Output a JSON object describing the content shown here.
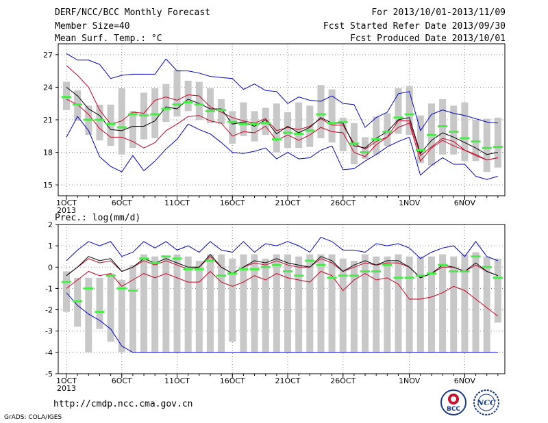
{
  "header": {
    "title": "DERF/NCC/BCC Monthly Forecast",
    "member_size": "Member Size=40",
    "variable1": "Mean Surf. Temp.: °C",
    "period": "For 2013/10/01-2013/11/09",
    "started": "Fcst Started Refer Date 2013/09/30",
    "produced": "Fcst Produced Date 2013/10/01"
  },
  "footer": {
    "url": "http://cmdp.ncc.cma.gov.cn",
    "credit": "GrADS: COLA/IGES",
    "logo_bcc": "BCC",
    "logo_ncc": "NCC"
  },
  "colors": {
    "max": "#0000cc",
    "min": "#cc0022",
    "mean": "#000000",
    "box": "#c8c8c8",
    "median": "#44ee44",
    "grid": "#888888"
  },
  "chart_data": [
    {
      "type": "line",
      "panel": "temperature",
      "ylim": [
        14,
        28
      ],
      "yticks": [
        15,
        18,
        21,
        24,
        27
      ],
      "x": [
        1,
        2,
        3,
        4,
        5,
        6,
        7,
        8,
        9,
        10,
        11,
        12,
        13,
        14,
        15,
        16,
        17,
        18,
        19,
        20,
        21,
        22,
        23,
        24,
        25,
        26,
        27,
        28,
        29,
        30,
        31,
        32,
        33,
        34,
        35,
        36,
        37,
        38,
        39,
        40
      ],
      "xticks": [
        {
          "day": 1,
          "label": "1OCT",
          "sub": "2013"
        },
        {
          "day": 6,
          "label": "6OCT"
        },
        {
          "day": 11,
          "label": "11OCT"
        },
        {
          "day": 16,
          "label": "16OCT"
        },
        {
          "day": 21,
          "label": "21OCT"
        },
        {
          "day": 26,
          "label": "26OCT"
        },
        {
          "day": 32,
          "label": "1NOV"
        },
        {
          "day": 37,
          "label": "6NOV"
        }
      ],
      "series": {
        "max": [
          27.1,
          26.5,
          26.5,
          26.1,
          24.8,
          25.1,
          25.2,
          25.2,
          25.2,
          26.6,
          25.5,
          25.5,
          25.3,
          25.0,
          24.9,
          24.8,
          23.8,
          24.3,
          23.7,
          23.6,
          22.5,
          23.1,
          22.8,
          22.7,
          23.2,
          22.5,
          22.4,
          20.3,
          21.2,
          21.7,
          23.4,
          23.6,
          20.0,
          21.5,
          21.9,
          21.6,
          21.4,
          21.1,
          20.8,
          20.7
        ],
        "mean": [
          24.0,
          23.2,
          22.0,
          21.4,
          20.1,
          20.0,
          20.4,
          20.4,
          20.9,
          22.2,
          22.0,
          22.9,
          22.5,
          22.0,
          22.0,
          20.6,
          20.8,
          20.4,
          21.0,
          19.7,
          20.4,
          19.8,
          20.3,
          21.2,
          20.7,
          20.7,
          18.6,
          18.4,
          19.3,
          19.9,
          21.0,
          21.2,
          17.9,
          19.1,
          19.8,
          19.4,
          18.9,
          18.4,
          17.8,
          18.0
        ],
        "min": [
          19.4,
          21.3,
          20.0,
          17.6,
          16.7,
          16.2,
          17.7,
          16.3,
          17.2,
          18.3,
          19.2,
          20.6,
          20.1,
          19.7,
          18.9,
          18.0,
          17.9,
          18.1,
          18.4,
          17.4,
          18.0,
          17.4,
          17.5,
          18.2,
          18.6,
          16.4,
          16.5,
          17.2,
          17.8,
          18.5,
          19.0,
          19.4,
          15.9,
          16.8,
          17.5,
          16.9,
          16.9,
          15.8,
          15.5,
          15.8
        ],
        "upper": [
          26.0,
          25.1,
          24.0,
          21.9,
          20.6,
          20.9,
          21.7,
          21.6,
          22.8,
          23.1,
          22.8,
          23.3,
          23.2,
          22.2,
          21.7,
          21.2,
          20.9,
          20.7,
          21.1,
          20.0,
          20.3,
          20.1,
          20.4,
          21.1,
          20.5,
          20.5,
          18.8,
          18.3,
          19.0,
          19.4,
          20.9,
          20.9,
          17.7,
          18.5,
          19.3,
          19.0,
          18.2,
          17.8,
          17.3,
          17.5
        ],
        "lower": [
          22.9,
          22.4,
          21.5,
          20.2,
          19.4,
          19.4,
          19.0,
          18.4,
          18.9,
          20.0,
          20.6,
          21.3,
          21.4,
          20.9,
          20.7,
          19.5,
          19.9,
          19.8,
          20.4,
          19.1,
          19.6,
          19.1,
          19.6,
          20.3,
          19.9,
          19.8,
          18.0,
          17.6,
          18.7,
          19.4,
          20.3,
          20.7,
          17.2,
          18.4,
          19.1,
          18.6,
          18.2,
          17.7,
          17.3,
          17.5
        ],
        "box_hi": [
          24.5,
          23.7,
          22.3,
          22.4,
          22.4,
          23.9,
          21.8,
          23.5,
          23.9,
          24.3,
          25.6,
          24.6,
          24.5,
          23.9,
          22.9,
          21.8,
          22.6,
          21.8,
          22.1,
          22.5,
          21.7,
          22.6,
          22.3,
          24.2,
          23.8,
          21.2,
          20.7,
          19.4,
          21.3,
          21.6,
          23.9,
          24.1,
          21.4,
          22.5,
          22.9,
          22.3,
          22.6,
          21.0,
          21.1,
          21.2
        ],
        "box_lo": [
          21.9,
          20.9,
          19.6,
          19.1,
          18.6,
          17.8,
          18.4,
          19.2,
          19.3,
          20.8,
          21.3,
          21.8,
          21.0,
          20.7,
          20.6,
          18.8,
          19.5,
          19.0,
          19.6,
          18.0,
          18.4,
          18.4,
          18.5,
          19.3,
          18.9,
          18.1,
          16.9,
          17.4,
          17.8,
          18.6,
          19.7,
          19.6,
          17.0,
          16.8,
          17.8,
          17.8,
          17.2,
          17.2,
          16.2,
          16.6
        ],
        "median": [
          23.1,
          22.4,
          21.0,
          21.0,
          20.6,
          20.3,
          21.5,
          21.4,
          21.5,
          22.0,
          22.4,
          22.6,
          22.4,
          21.8,
          21.9,
          20.8,
          20.6,
          20.6,
          20.7,
          19.2,
          19.8,
          19.7,
          20.0,
          21.5,
          20.7,
          20.8,
          18.8,
          18.0,
          19.2,
          19.9,
          21.2,
          21.5,
          18.2,
          19.6,
          20.4,
          19.9,
          19.3,
          19.0,
          18.4,
          18.5
        ]
      }
    },
    {
      "type": "line",
      "panel": "precipitation",
      "title": "Prec.: log(mm/d)",
      "ylim": [
        -5,
        2
      ],
      "yticks": [
        -5,
        -4,
        -3,
        -2,
        -1,
        0,
        1,
        2
      ],
      "x": [
        1,
        2,
        3,
        4,
        5,
        6,
        7,
        8,
        9,
        10,
        11,
        12,
        13,
        14,
        15,
        16,
        17,
        18,
        19,
        20,
        21,
        22,
        23,
        24,
        25,
        26,
        27,
        28,
        29,
        30,
        31,
        32,
        33,
        34,
        35,
        36,
        37,
        38,
        39,
        40
      ],
      "xticks": [
        {
          "day": 1,
          "label": "1OCT",
          "sub": "2013"
        },
        {
          "day": 6,
          "label": "6OCT"
        },
        {
          "day": 11,
          "label": "11OCT"
        },
        {
          "day": 16,
          "label": "16OCT"
        },
        {
          "day": 21,
          "label": "21OCT"
        },
        {
          "day": 26,
          "label": "26OCT"
        },
        {
          "day": 32,
          "label": "1NOV"
        },
        {
          "day": 37,
          "label": "6NOV"
        }
      ],
      "series": {
        "max": [
          0.3,
          0.8,
          1.2,
          1.0,
          1.2,
          0.5,
          0.7,
          1.2,
          0.9,
          1.2,
          0.8,
          1.0,
          0.7,
          1.2,
          0.8,
          0.7,
          1.2,
          0.7,
          1.1,
          1.0,
          1.2,
          1.0,
          0.7,
          1.4,
          1.2,
          0.8,
          0.8,
          0.7,
          1.1,
          1.0,
          1.1,
          0.9,
          0.4,
          0.7,
          0.9,
          1.0,
          0.5,
          1.2,
          0.5,
          0.3
        ],
        "mean": [
          -0.4,
          0.0,
          0.5,
          0.3,
          0.4,
          -0.2,
          0.0,
          0.4,
          0.2,
          0.4,
          0.2,
          0.0,
          0.0,
          0.6,
          0.0,
          -0.3,
          0.0,
          0.3,
          0.2,
          0.4,
          0.2,
          0.1,
          0.0,
          0.5,
          0.3,
          -0.2,
          0.1,
          0.3,
          0.1,
          0.3,
          0.3,
          0.0,
          -0.5,
          -0.3,
          0.1,
          0.0,
          -0.2,
          0.2,
          -0.2,
          -0.4
        ],
        "min": [
          -1.2,
          -1.8,
          -2.2,
          -2.5,
          -2.9,
          -3.7,
          -4.0,
          -4.0,
          -4.0,
          -4.0,
          -4.0,
          -4.0,
          -4.0,
          -4.0,
          -4.0,
          -4.0,
          -4.0,
          -4.0,
          -4.0,
          -4.0,
          -4.0,
          -4.0,
          -4.0,
          -4.0,
          -4.0,
          -4.0,
          -4.0,
          -4.0,
          -4.0,
          -4.0,
          -4.0,
          -4.0,
          -4.0,
          -4.0,
          -4.0,
          -4.0,
          -4.0,
          -4.0,
          -4.0,
          -4.0
        ],
        "upper": [
          -0.4,
          0.0,
          0.4,
          0.2,
          0.3,
          -0.2,
          0.0,
          0.3,
          0.1,
          0.3,
          0.1,
          -0.1,
          0.0,
          0.5,
          0.0,
          -0.3,
          0.0,
          0.2,
          0.1,
          0.3,
          0.1,
          0.0,
          0.0,
          0.4,
          0.2,
          -0.2,
          0.0,
          0.2,
          0.1,
          0.2,
          0.2,
          0.0,
          -0.5,
          -0.3,
          0.0,
          0.0,
          -0.2,
          0.1,
          -0.2,
          -0.4
        ],
        "lower": [
          -1.0,
          -0.6,
          -0.2,
          -0.4,
          -0.3,
          -0.9,
          -0.6,
          -0.3,
          -0.5,
          -0.3,
          -0.5,
          -0.7,
          -0.7,
          -0.2,
          -0.7,
          -0.9,
          -0.7,
          -0.4,
          -0.6,
          -0.3,
          -0.5,
          -0.6,
          -0.7,
          -0.2,
          -0.4,
          -1.1,
          -0.6,
          -0.3,
          -0.6,
          -0.5,
          -0.8,
          -1.5,
          -1.5,
          -1.4,
          -1.2,
          -0.9,
          -1.1,
          -1.5,
          -1.9,
          -2.3
        ],
        "box_hi": [
          -0.2,
          -0.5,
          -0.5,
          -0.5,
          -0.3,
          -0.6,
          0.1,
          0.6,
          0.5,
          0.5,
          0.6,
          0.5,
          0.3,
          0.6,
          0.6,
          0.4,
          0.6,
          0.6,
          0.4,
          0.6,
          0.6,
          0.5,
          0.6,
          0.6,
          0.6,
          0.4,
          0.3,
          0.6,
          0.5,
          0.5,
          0.6,
          0.5,
          0.5,
          0.5,
          0.6,
          0.5,
          0.6,
          0.7,
          0.5,
          0.4
        ],
        "box_lo": [
          -2.1,
          -2.8,
          -4.0,
          -2.9,
          -3.5,
          -4.0,
          -4.0,
          -4.0,
          -4.0,
          -4.0,
          -4.0,
          -4.0,
          -4.0,
          -4.0,
          -4.0,
          -3.5,
          -4.0,
          -4.0,
          -4.0,
          -4.0,
          -4.0,
          -4.0,
          -4.0,
          -4.0,
          -4.0,
          -4.0,
          -4.0,
          -4.0,
          -4.0,
          -4.0,
          -4.0,
          -4.0,
          -4.0,
          -4.0,
          -4.0,
          -4.0,
          -4.0,
          -4.0,
          -4.0,
          -2.6
        ],
        "median": [
          -0.7,
          -1.6,
          -1.0,
          -2.1,
          -0.4,
          -1.0,
          -1.1,
          0.4,
          0.2,
          0.5,
          0.4,
          -0.1,
          -0.1,
          0.3,
          -0.4,
          -0.3,
          -0.1,
          -0.1,
          0.0,
          0.1,
          -0.2,
          -0.4,
          0.3,
          0.1,
          -0.5,
          -0.4,
          -0.4,
          -0.2,
          -0.2,
          0.1,
          -0.5,
          -0.5,
          -0.4,
          -0.3,
          0.1,
          -0.2,
          -0.2,
          0.5,
          0.0,
          -0.5
        ]
      }
    }
  ]
}
